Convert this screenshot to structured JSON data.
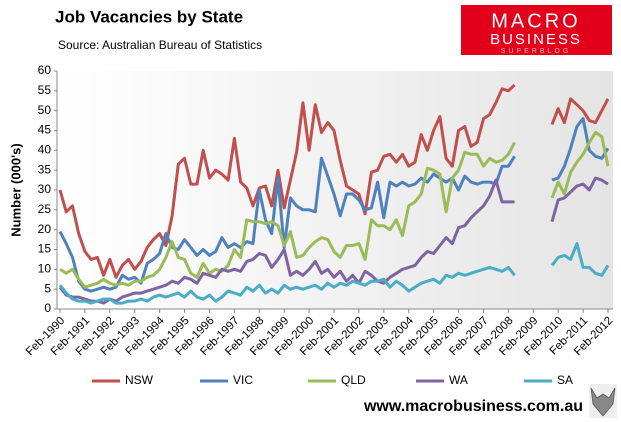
{
  "chart_data": {
    "type": "line",
    "title": "Job Vacancies by State",
    "subtitle": "Source: Australian Bureau of Statistics",
    "y_label": "Number (000's)",
    "logo": {
      "line1": "MACRO",
      "line2": "BUSINESS",
      "line3": "SUPERBLOG"
    },
    "footer": "www.macrobusiness.com.au",
    "ylim": [
      0,
      60
    ],
    "yticks": [
      0,
      5,
      10,
      15,
      20,
      25,
      30,
      35,
      40,
      45,
      50,
      55,
      60
    ],
    "legend": "bottom",
    "grid": false,
    "categories": [
      "Feb-1990",
      null,
      null,
      null,
      "Feb-1991",
      null,
      null,
      null,
      "Feb-1992",
      null,
      null,
      null,
      "Feb-1993",
      null,
      null,
      null,
      "Feb-1994",
      null,
      null,
      null,
      "Feb-1995",
      null,
      null,
      null,
      "Feb-1996",
      null,
      null,
      null,
      "Feb-1997",
      null,
      null,
      null,
      "Feb-1998",
      null,
      null,
      null,
      "Feb-1999",
      null,
      null,
      null,
      "Feb-2000",
      null,
      null,
      null,
      "Feb-2001",
      null,
      null,
      null,
      "Feb-2002",
      null,
      null,
      null,
      "Feb-2003",
      null,
      null,
      null,
      "Feb-2004",
      null,
      null,
      null,
      "Feb-2005",
      null,
      null,
      null,
      "Feb-2006",
      null,
      null,
      null,
      "Feb-2007",
      null,
      null,
      null,
      "Feb-2008",
      null,
      null,
      null,
      "Feb-2009",
      null,
      null,
      null,
      "Feb-2010",
      null,
      null,
      null,
      "Feb-2011",
      null,
      null,
      null,
      "Feb-2012"
    ],
    "series": [
      {
        "name": "NSW",
        "color": "#c0504d",
        "values": [
          30,
          24.5,
          26,
          19,
          14.5,
          12.5,
          13,
          8.5,
          12.5,
          8,
          11,
          12.5,
          10,
          12,
          15.5,
          17.5,
          19,
          16,
          23.5,
          36.5,
          38,
          31.5,
          31.5,
          40,
          33,
          35,
          34,
          32.5,
          43,
          32,
          30.5,
          26,
          30.5,
          31,
          26,
          35,
          25.5,
          32.5,
          39.5,
          52,
          40,
          51.5,
          44.5,
          47,
          45,
          37.5,
          31,
          30,
          29,
          24,
          34.5,
          35,
          38.5,
          39,
          37,
          39,
          36,
          37,
          44,
          40,
          45,
          48.5,
          38,
          36,
          45,
          46,
          41,
          42,
          48,
          49,
          52,
          55.5,
          55,
          56.5,
          null,
          null,
          null,
          null,
          null,
          46.5,
          50.5,
          47,
          53,
          51.5,
          50,
          47.5,
          47,
          50,
          53
        ]
      },
      {
        "name": "VIC",
        "color": "#4f81bd",
        "values": [
          19.5,
          16.5,
          13,
          7,
          5,
          4.5,
          5,
          5.5,
          5,
          5.5,
          8.5,
          7.5,
          8,
          6.5,
          11.5,
          12.5,
          14,
          19,
          15.5,
          15,
          17.5,
          15.5,
          13.5,
          15,
          13.5,
          14.5,
          18,
          15.5,
          16.5,
          15.5,
          17,
          16.5,
          30,
          22.5,
          19,
          33,
          15.5,
          28,
          26,
          25,
          25,
          24.5,
          38,
          33.5,
          29,
          23.5,
          29,
          29,
          27.5,
          25,
          25.5,
          32,
          23,
          32,
          31,
          32,
          31,
          31.5,
          33,
          32,
          34,
          33,
          32,
          33,
          30,
          33.5,
          32,
          31.5,
          32,
          32,
          31.5,
          36,
          36,
          38.5,
          null,
          null,
          null,
          null,
          null,
          32.5,
          33,
          36,
          40.5,
          46,
          48,
          40,
          38.5,
          38,
          40.5
        ]
      },
      {
        "name": "QLD",
        "color": "#9bbb59",
        "values": [
          10,
          9,
          10,
          7.5,
          5.5,
          6,
          6.5,
          7.5,
          6.5,
          6,
          6.5,
          6,
          7,
          7,
          8,
          8.5,
          10,
          13,
          17,
          13,
          12.5,
          9,
          8,
          11.5,
          9,
          10,
          9.5,
          11,
          15,
          13,
          22.5,
          22,
          22,
          21.5,
          22,
          21,
          16,
          19.5,
          13,
          13.5,
          15.5,
          17,
          18,
          17.5,
          14.5,
          13,
          16,
          16,
          16.5,
          12.5,
          22.5,
          21,
          21,
          20,
          22.5,
          18.5,
          26,
          27,
          29,
          35.5,
          35,
          34,
          24.5,
          33,
          35,
          39.5,
          39,
          39,
          36,
          38,
          37,
          37.5,
          39,
          42,
          null,
          null,
          null,
          null,
          null,
          28,
          32,
          29,
          34.5,
          37,
          39,
          42,
          44.5,
          43.5,
          36
        ]
      },
      {
        "name": "WA",
        "color": "#8064a2",
        "values": [
          5.5,
          3.5,
          3,
          3,
          2.5,
          2,
          2,
          1.5,
          2.5,
          2,
          3,
          3.5,
          4,
          4,
          4.5,
          5,
          5.5,
          6,
          7,
          6.5,
          8,
          7.5,
          6.5,
          9,
          8.5,
          8,
          10,
          9.5,
          10,
          9.5,
          12,
          12.5,
          14,
          13.5,
          10.5,
          12.5,
          15,
          8.5,
          9.5,
          8.5,
          10,
          12,
          9,
          10,
          8,
          9.5,
          7,
          8.5,
          6.5,
          9.5,
          8.5,
          7,
          6.5,
          8,
          9,
          10,
          10.5,
          11,
          13,
          14.5,
          14,
          16,
          18,
          16.5,
          20.5,
          21,
          23,
          24.5,
          26,
          28.5,
          32.5,
          27,
          27,
          27,
          null,
          null,
          null,
          null,
          null,
          22,
          27.5,
          28,
          29.5,
          31,
          31.5,
          30,
          33,
          32.5,
          31.5
        ]
      },
      {
        "name": "SA",
        "color": "#4bacc6",
        "values": [
          6,
          4,
          2.5,
          2,
          2,
          1.5,
          2,
          2.5,
          2.5,
          1.5,
          1.5,
          2,
          2,
          2.5,
          2,
          3,
          3.5,
          3,
          3.5,
          4,
          3,
          4.5,
          3,
          2.5,
          3.5,
          2,
          3,
          4.5,
          4,
          3.5,
          5.5,
          4.5,
          6,
          4,
          5,
          4,
          6,
          5,
          5.5,
          5,
          5.5,
          6,
          5,
          6.5,
          5.5,
          6.5,
          6,
          7,
          6.5,
          6,
          7,
          7,
          7.5,
          5.5,
          7,
          6,
          4.5,
          5.5,
          6.5,
          7,
          7.5,
          6.5,
          8.5,
          8,
          9,
          8.5,
          9,
          9.5,
          10,
          10.5,
          10,
          9.5,
          10.5,
          8.5,
          null,
          null,
          null,
          null,
          null,
          11,
          13,
          13.5,
          12.5,
          16.5,
          10.5,
          10.5,
          9,
          8.5,
          11
        ]
      }
    ]
  }
}
